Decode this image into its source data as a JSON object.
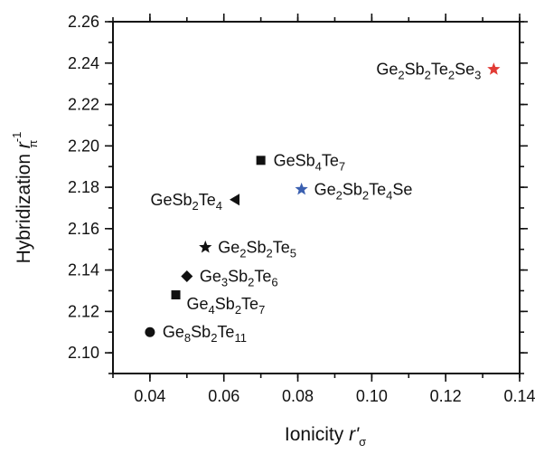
{
  "chart_data": {
    "type": "scatter",
    "xlabel": {
      "main": "Ionicity ",
      "var": "r'",
      "sub": "σ"
    },
    "ylabel": {
      "main": "Hybridization ",
      "var": "r",
      "sup": "-1",
      "sub": "π"
    },
    "xlim": [
      0.03,
      0.14
    ],
    "ylim": [
      2.09,
      2.26
    ],
    "xticks": [
      "0.04",
      "0.06",
      "0.08",
      "0.10",
      "0.12",
      "0.14"
    ],
    "yticks": [
      "2.10",
      "2.12",
      "2.14",
      "2.16",
      "2.18",
      "2.20",
      "2.22",
      "2.24",
      "2.26"
    ],
    "grid": false,
    "points": [
      {
        "x": 0.04,
        "y": 2.11,
        "marker": "circle",
        "color": "#111111",
        "label": [
          [
            "Ge",
            ""
          ],
          [
            "8",
            "sub"
          ],
          [
            "Sb",
            ""
          ],
          [
            "2",
            "sub"
          ],
          [
            "Te",
            ""
          ],
          [
            "11",
            "sub"
          ]
        ],
        "label_side": "right"
      },
      {
        "x": 0.047,
        "y": 2.128,
        "marker": "square",
        "color": "#111111",
        "label": [
          [
            "Ge",
            ""
          ],
          [
            "4",
            "sub"
          ],
          [
            "Sb",
            ""
          ],
          [
            "2",
            "sub"
          ],
          [
            "Te",
            ""
          ],
          [
            "7",
            "sub"
          ]
        ],
        "label_side": "right-below"
      },
      {
        "x": 0.05,
        "y": 2.137,
        "marker": "diamond",
        "color": "#111111",
        "label": [
          [
            "Ge",
            ""
          ],
          [
            "3",
            "sub"
          ],
          [
            "Sb",
            ""
          ],
          [
            "2",
            "sub"
          ],
          [
            "Te",
            ""
          ],
          [
            "6",
            "sub"
          ]
        ],
        "label_side": "right"
      },
      {
        "x": 0.055,
        "y": 2.151,
        "marker": "star",
        "color": "#111111",
        "label": [
          [
            "Ge",
            ""
          ],
          [
            "2",
            "sub"
          ],
          [
            "Sb",
            ""
          ],
          [
            "2",
            "sub"
          ],
          [
            "Te",
            ""
          ],
          [
            "5",
            "sub"
          ]
        ],
        "label_side": "right"
      },
      {
        "x": 0.063,
        "y": 2.174,
        "marker": "triangle-left",
        "color": "#111111",
        "label": [
          [
            "GeSb",
            ""
          ],
          [
            "2",
            "sub"
          ],
          [
            "Te",
            ""
          ],
          [
            "4",
            "sub"
          ]
        ],
        "label_side": "left"
      },
      {
        "x": 0.07,
        "y": 2.193,
        "marker": "square",
        "color": "#111111",
        "label": [
          [
            "GeSb",
            ""
          ],
          [
            "4",
            "sub"
          ],
          [
            "Te",
            ""
          ],
          [
            "7",
            "sub"
          ]
        ],
        "label_side": "right"
      },
      {
        "x": 0.081,
        "y": 2.179,
        "marker": "star",
        "color": "#3a5fb0",
        "label": [
          [
            "Ge",
            ""
          ],
          [
            "2",
            "sub"
          ],
          [
            "Sb",
            ""
          ],
          [
            "2",
            "sub"
          ],
          [
            "Te",
            ""
          ],
          [
            "4",
            "sub"
          ],
          [
            "Se",
            ""
          ]
        ],
        "label_side": "right"
      },
      {
        "x": 0.133,
        "y": 2.237,
        "marker": "star",
        "color": "#e23b35",
        "label": [
          [
            "Ge",
            ""
          ],
          [
            "2",
            "sub"
          ],
          [
            "Sb",
            ""
          ],
          [
            "2",
            "sub"
          ],
          [
            "Te",
            ""
          ],
          [
            "2",
            "sub"
          ],
          [
            "Se",
            ""
          ],
          [
            "3",
            "sub"
          ]
        ],
        "label_side": "left"
      }
    ]
  }
}
